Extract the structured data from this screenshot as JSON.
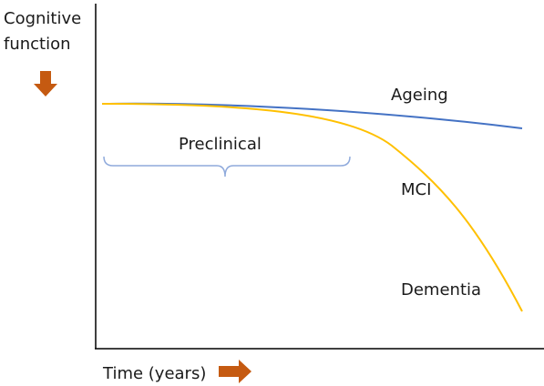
{
  "chart_data": {
    "type": "line",
    "ylabel_lines": [
      "Cognitive",
      "function"
    ],
    "xlabel": "Time (years)",
    "colors": {
      "arrow": "#c55a11",
      "ageing": "#4472c4",
      "dementia": "#ffc000",
      "bracket": "#8faadc",
      "axis": "#000000"
    },
    "series": [
      {
        "name": "Ageing",
        "color": "#4472c4"
      },
      {
        "name": "Dementia",
        "color": "#ffc000"
      }
    ],
    "annotations": {
      "preclinical": "Preclinical",
      "ageing": "Ageing",
      "mci": "MCI",
      "dementia": "Dementia"
    },
    "grid": false,
    "legend": "none"
  }
}
